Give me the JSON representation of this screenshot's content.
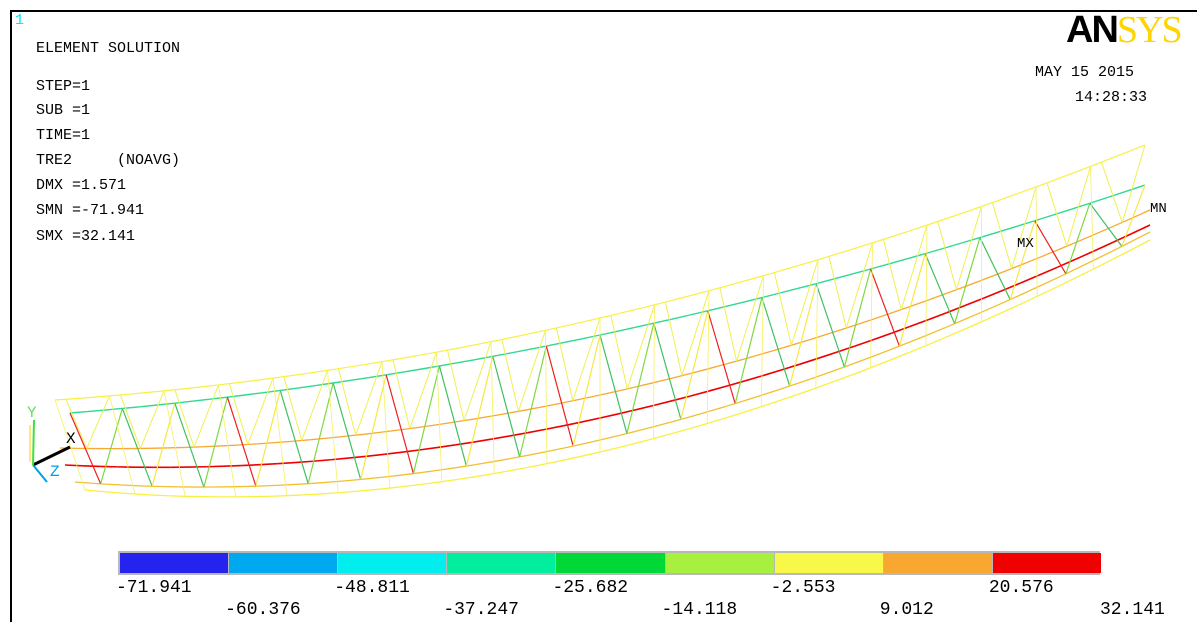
{
  "window_number": "1",
  "logo": {
    "part1": "AN",
    "part2": "SYS"
  },
  "header": {
    "title": "ELEMENT SOLUTION",
    "step": "STEP=1",
    "sub": "SUB =1",
    "time": "TIME=1",
    "item": "TRE2     (NOAVG)",
    "dmx": "DMX =1.571",
    "smn": "SMN =-71.941",
    "smx": "SMX =32.141"
  },
  "datestamp": {
    "date": "MAY 15 2015",
    "time": "14:28:33"
  },
  "markers": {
    "mx": "MX",
    "mn": "MN"
  },
  "triad": {
    "x": "X",
    "y": "Y",
    "z": "Z"
  },
  "legend": {
    "colors": [
      "#2424ee",
      "#00a8f0",
      "#00eeee",
      "#00ee9e",
      "#00d838",
      "#a8f040",
      "#f8f848",
      "#f8a830",
      "#f00000"
    ],
    "labels_top": [
      "-71.941",
      "-48.811",
      "-25.682",
      "-2.553",
      "20.576"
    ],
    "labels_bottom": [
      "-60.376",
      "-37.247",
      "-14.118",
      "9.012",
      "32.141"
    ]
  }
}
